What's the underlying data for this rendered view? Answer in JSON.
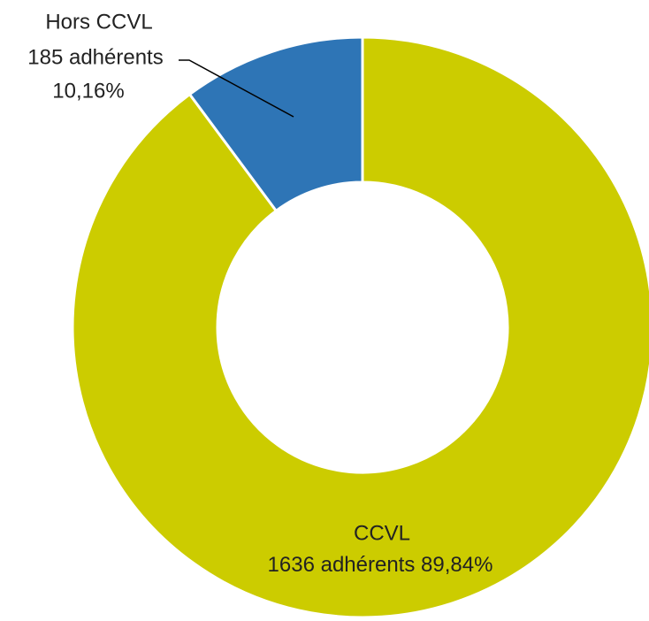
{
  "chart_data": {
    "type": "donut",
    "categories": [
      "CCVL",
      "Hors CCVL"
    ],
    "values": [
      1636,
      185
    ],
    "value_labels": [
      "1636 adhérents",
      "185 adhérents"
    ],
    "percents": [
      89.84,
      10.16
    ],
    "percent_labels": [
      "89,84%",
      "10,16%"
    ],
    "colors": [
      "#cccc00",
      "#2e75b6"
    ]
  }
}
